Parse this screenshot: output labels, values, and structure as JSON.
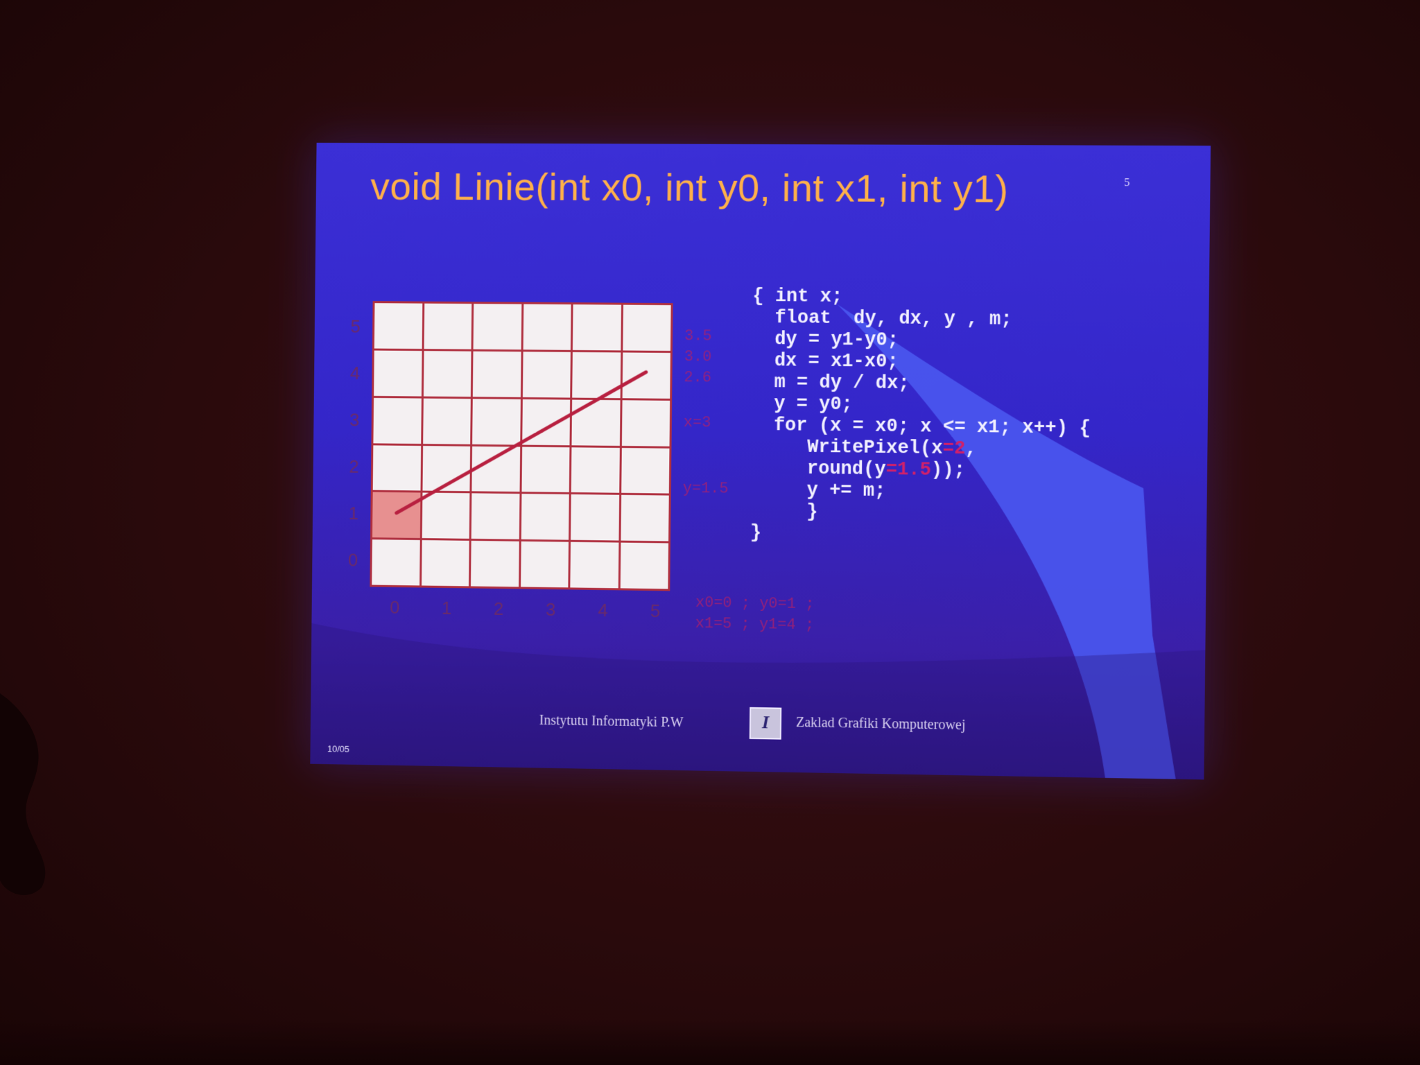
{
  "slide": {
    "title": "void Linie(int x0, int y0, int x1, int y1)",
    "page_mark": "5",
    "y_axis_labels": [
      "5",
      "4",
      "3",
      "2",
      "1",
      "0"
    ],
    "x_axis_labels": [
      "0",
      "1",
      "2",
      "3",
      "4",
      "5"
    ],
    "side_notes": [
      "3.5",
      "3.0",
      "2.6",
      "x=3",
      "y=1.5"
    ],
    "coords_line1": "x0=0 ; y0=1 ;",
    "coords_line2": "x1=5 ; y1=4 ;",
    "code": {
      "line1": "{ int x;",
      "line2": "  float  dy, dx, y , m;",
      "line3": "  dy = y1-y0;",
      "line4": "  dx = x1-x0;",
      "line5": "  m = dy / dx;",
      "line6": "  y = y0;",
      "line7": "  for (x = x0; x <= x1; x++) {",
      "line8a": "     WritePixel(x",
      "line8b": "=2",
      "line8c": ",",
      "line9a": "     round(y",
      "line9b": "=1.5",
      "line9c": "));",
      "line10": "     y += m;",
      "line11": "     }",
      "line12": "}"
    },
    "footer": {
      "left": "Instytutu Informatyki P.W",
      "logo": "I",
      "right": "Zaklad Grafiki Komputerowej"
    },
    "slide_number": "10/05"
  },
  "colors": {
    "slide_bg": "#3b2fd6",
    "title": "#ffb04a",
    "grid_line": "#b03040",
    "lit_pixel": "#e79090",
    "code_text": "#f2f0ff",
    "annotation": "#d0206a",
    "room": "#2a0a0c"
  },
  "line_segment": {
    "from": [
      0,
      1
    ],
    "to": [
      5,
      4
    ]
  },
  "lit_pixels": [
    [
      0,
      1
    ]
  ]
}
